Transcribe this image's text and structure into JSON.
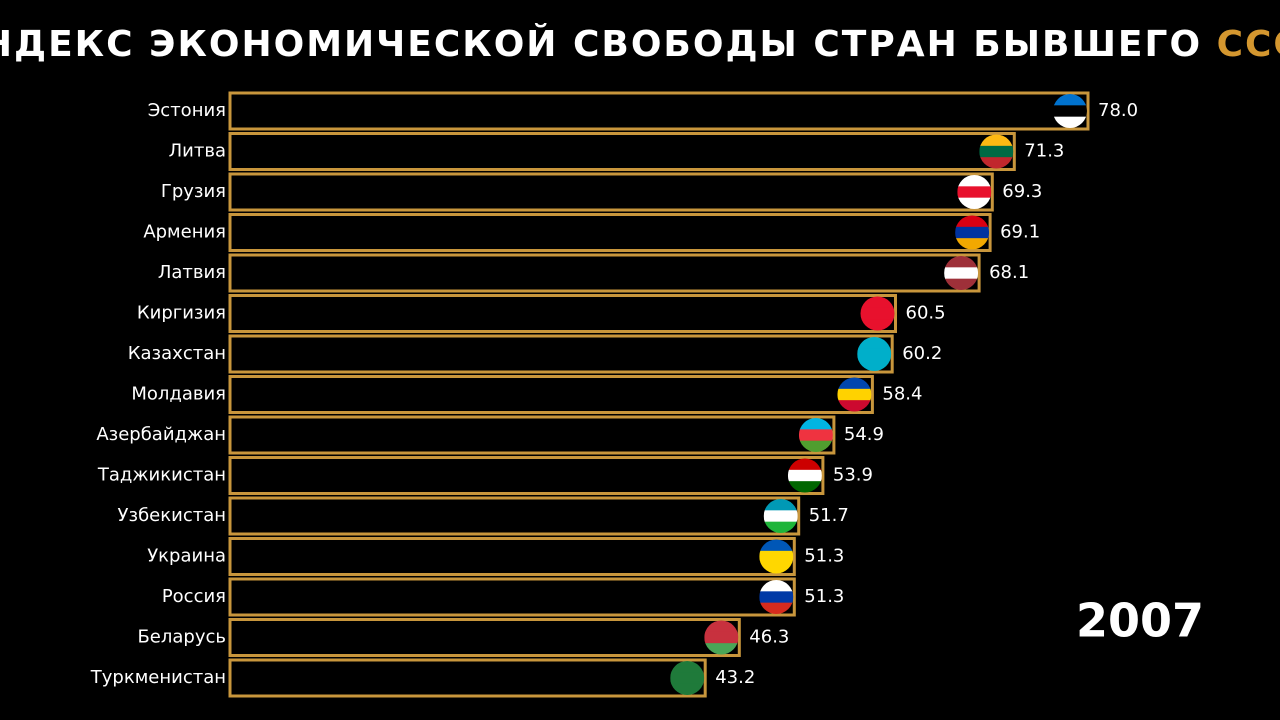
{
  "chart_data": {
    "type": "bar",
    "orientation": "horizontal",
    "title": "ИНДЕКС ЭКОНОМИЧЕСКОЙ СВОБОДЫ СТРАН БЫВШЕГО",
    "title_accent": "СССР",
    "year": "2007",
    "categories": [
      "Эстония",
      "Литва",
      "Грузия",
      "Армения",
      "Латвия",
      "Киргизия",
      "Казахстан",
      "Молдавия",
      "Азербайджан",
      "Таджикистан",
      "Узбекистан",
      "Украина",
      "Россия",
      "Беларусь",
      "Туркменистан"
    ],
    "values": [
      78.0,
      71.3,
      69.3,
      69.1,
      68.1,
      60.5,
      60.2,
      58.4,
      54.9,
      53.9,
      51.7,
      51.3,
      51.3,
      46.3,
      43.2
    ],
    "value_labels": [
      "78.0",
      "71.3",
      "69.3",
      "69.1",
      "68.1",
      "60.5",
      "60.2",
      "58.4",
      "54.9",
      "53.9",
      "51.7",
      "51.3",
      "51.3",
      "46.3",
      "43.2"
    ],
    "color": "#000000",
    "edge_color": "#c8963c",
    "accent_color": "#d4972f"
  }
}
